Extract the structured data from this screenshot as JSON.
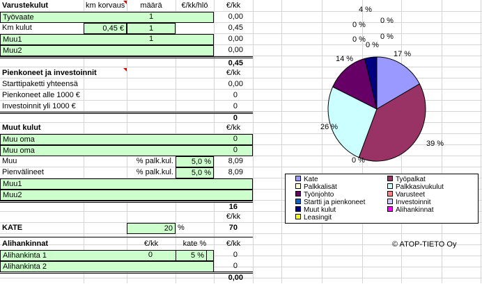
{
  "varustekulut": {
    "header": {
      "title": "Varustekulut",
      "km_korvaus": "km korvaus",
      "maara": "määrä",
      "eur_kk_hlo": "€/kk/hlö",
      "eur_kk": "€/kk"
    },
    "rows": [
      {
        "label": "Työvaate",
        "km": "",
        "maara": "1",
        "hlo": "",
        "value": "0,00"
      },
      {
        "label": "Km kulut",
        "km": "0,45 €",
        "maara": "1",
        "hlo": "",
        "value": "0,45"
      },
      {
        "label": "Muu1",
        "km": "",
        "maara": "1",
        "hlo": "",
        "value": "0,00"
      },
      {
        "label": "Muu2",
        "km": "",
        "maara": "",
        "hlo": "",
        "value": "0,00"
      }
    ],
    "total": "0,45"
  },
  "pienkoneet": {
    "title": "Pienkoneet ja investoinnit",
    "unit": "€/kk",
    "rows": [
      {
        "label": "Starttipaketti yhteensä",
        "value": "0,00"
      },
      {
        "label": "Pienkoneet alle 1000 €",
        "value": "0"
      },
      {
        "label": "Investoinnit yli 1000 €",
        "value": "0"
      }
    ],
    "total": "0"
  },
  "muut_kulut": {
    "title": "Muut kulut",
    "unit": "€/kk",
    "rows": [
      {
        "label": "Muu oma",
        "tag": "",
        "pct": "",
        "value": "0"
      },
      {
        "label": "Muu oma",
        "tag": "",
        "pct": "",
        "value": "0"
      },
      {
        "label": "Muu",
        "tag": "% palk.kul.",
        "pct": "5,0 %",
        "value": "8,09"
      },
      {
        "label": "Pienvälineet",
        "tag": "% palk.kul.",
        "pct": "5,0 %",
        "value": "8,09"
      },
      {
        "label": "Muu1",
        "tag": "",
        "pct": "",
        "value": ""
      },
      {
        "label": "Muu2",
        "tag": "",
        "pct": "",
        "value": ""
      }
    ],
    "total": "16",
    "total_unit": "€/kk"
  },
  "kate": {
    "label": "KATE",
    "pct": "20",
    "pct_sign": "%",
    "value": "70"
  },
  "alihankinnat": {
    "title": "Alihankinnat",
    "col_eur": "€/kk",
    "col_kate": "kate %",
    "col_unit": "€/kk",
    "rows": [
      {
        "label": "Alihankinta 1",
        "eur": "0",
        "kate": "5 %",
        "value": "0"
      },
      {
        "label": "Alihankinta 2",
        "eur": "",
        "kate": "",
        "value": "0"
      }
    ],
    "total": "0,00"
  },
  "copyright": "© ATOP-TIETO Oy",
  "chart_data": {
    "type": "pie",
    "title": "",
    "slices": [
      {
        "name": "Kate",
        "value": 17,
        "label": "17 %",
        "color": "#9999ff"
      },
      {
        "name": "Työpalkat",
        "value": 39,
        "label": "39 %",
        "color": "#993366"
      },
      {
        "name": "Palkkalisät",
        "value": 0,
        "label": "0 %",
        "color": "#ffffcc"
      },
      {
        "name": "Palkkasivukulut",
        "value": 26,
        "label": "26 %",
        "color": "#ccffff"
      },
      {
        "name": "Työnjohto",
        "value": 14,
        "label": "14 %",
        "color": "#660066"
      },
      {
        "name": "Varusteet",
        "value": 0,
        "label": "0 %",
        "color": "#ff8080"
      },
      {
        "name": "Startti ja pienkoneet",
        "value": 0,
        "label": "0 %",
        "color": "#0066cc"
      },
      {
        "name": "Investoinnit",
        "value": 0,
        "label": "0 %",
        "color": "#ccccff"
      },
      {
        "name": "Muut kulut",
        "value": 4,
        "label": "4 %",
        "color": "#000080"
      },
      {
        "name": "Alihankinnat",
        "value": 0,
        "label": "0 %",
        "color": "#ff00ff"
      },
      {
        "name": "Leasingit",
        "value": 0,
        "label": "0 %",
        "color": "#ffff00"
      }
    ],
    "legend_placement": "bottom"
  }
}
